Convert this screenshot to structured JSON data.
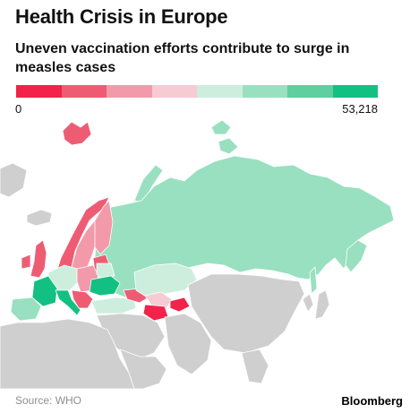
{
  "header": {
    "title": "Health Crisis in Europe",
    "subtitle": "Uneven vaccination efforts contribute to surge in measles cases"
  },
  "legend": {
    "min_label": "0",
    "max_label": "53,218",
    "colors": [
      "#f2224a",
      "#ee5c74",
      "#f29aaa",
      "#f6cbd4",
      "#cdeedd",
      "#99e0c0",
      "#5fcf9f",
      "#12c083"
    ]
  },
  "map": {
    "no_data_color": "#cfcfcf",
    "regions": {
      "svalbard": "#ee5c74",
      "iceland": "#cfcfcf",
      "norway": "#ee5c74",
      "sweden": "#f29aaa",
      "finland": "#f29aaa",
      "baltics": "#ee5c74",
      "russia": "#99e0c0",
      "british_isles": "#ee5c74",
      "western_europe": "#cdeedd",
      "france": "#12c083",
      "iberia": "#99e0c0",
      "italy": "#12c083",
      "central_europe": "#f29aaa",
      "ukraine": "#12c083",
      "belarus": "#cdeedd",
      "balkans": "#ee5c74",
      "turkey": "#cdeedd",
      "caucasus": "#ee5c74",
      "kazakhstan": "#cdeedd",
      "turkmenistan": "#f2224a",
      "uzbekistan": "#f6cbd4",
      "kyrgyz_tajik": "#f2224a",
      "israel": "#99e0c0",
      "north_africa": "#cfcfcf",
      "middle_east": "#cfcfcf",
      "central_asia_south": "#cfcfcf",
      "china_mongolia": "#cfcfcf",
      "korea_japan": "#cfcfcf"
    }
  },
  "footer": {
    "source": "Source: WHO",
    "brand": "Bloomberg"
  }
}
